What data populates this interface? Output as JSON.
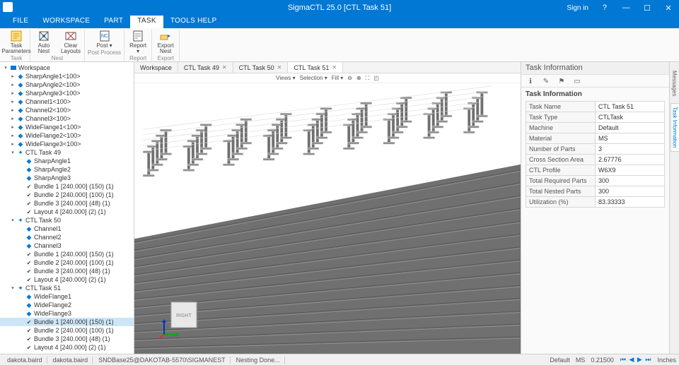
{
  "title": "SigmaCTL 25.0 [CTL Task 51]",
  "signin": "Sign in",
  "menuTabs": {
    "file": "FILE",
    "workspace": "WORKSPACE",
    "part": "PART",
    "task": "TASK",
    "tools": "TOOLS HELP",
    "active": "task"
  },
  "ribbon": {
    "taskGroup": {
      "label": "Task",
      "taskParams": "Task\nParameters"
    },
    "nestGroup": {
      "label": "Nest",
      "autoNest": "Auto\nNest",
      "clearLayouts": "Clear\nLayouts"
    },
    "postGroup": {
      "label": "Post Process",
      "post": "Post\n▾"
    },
    "reportGroup": {
      "label": "Report",
      "report": "Report\n▾"
    },
    "exportGroup": {
      "label": "Export",
      "exportNest": "Export\nNest"
    }
  },
  "tree": {
    "root": "Workspace",
    "topParts": [
      "SharpAngle1<100>",
      "SharpAngle2<100>",
      "SharpAngle3<100>",
      "Channel1<100>",
      "Channel2<100>",
      "Channel3<100>",
      "WideFlange1<100>",
      "WideFlange2<100>",
      "WideFlange3<100>"
    ],
    "tasks": [
      {
        "name": "CTL Task 49",
        "parts": [
          "SharpAngle1",
          "SharpAngle2",
          "SharpAngle3"
        ],
        "bundles": [
          "Bundle 1 [240.000] (150) (1)",
          "Bundle 2 [240.000] (100) (1)",
          "Bundle 3 [240.000] (48) (1)",
          "Layout 4 [240.000] (2) (1)"
        ]
      },
      {
        "name": "CTL Task 50",
        "parts": [
          "Channel1",
          "Channel2",
          "Channel3"
        ],
        "bundles": [
          "Bundle 1 [240.000] (150) (1)",
          "Bundle 2 [240.000] (100) (1)",
          "Bundle 3 [240.000] (48) (1)",
          "Layout 4 [240.000] (2) (1)"
        ]
      },
      {
        "name": "CTL Task 51",
        "parts": [
          "WideFlange1",
          "WideFlange2",
          "WideFlange3"
        ],
        "bundles": [
          "Bundle 1 [240.000] (150) (1)",
          "Bundle 2 [240.000] (100) (1)",
          "Bundle 3 [240.000] (48) (1)",
          "Layout 4 [240.000] (2) (1)"
        ],
        "selected": "Bundle 1 [240.000] (150) (1)"
      }
    ]
  },
  "docTabs": [
    {
      "label": "Workspace",
      "closable": false
    },
    {
      "label": "CTL Task 49",
      "closable": true
    },
    {
      "label": "CTL Task 50",
      "closable": true
    },
    {
      "label": "CTL Task 51",
      "closable": true,
      "active": true
    }
  ],
  "viewbar": {
    "views": "Views ▾",
    "selection": "Selection ▾",
    "fill": "Fill ▾"
  },
  "viewport": {
    "cubeLabel": "RIGHT",
    "beam": {
      "fill": "#707070",
      "dark": "#585858",
      "light": "#909090",
      "edge": "#d8d8d8"
    }
  },
  "taskInfo": {
    "panelTitle": "Task Information",
    "sectionTitle": "Task Information",
    "rows": [
      [
        "Task Name",
        "CTL Task 51"
      ],
      [
        "Task Type",
        "CTLTask"
      ],
      [
        "Machine",
        "Default"
      ],
      [
        "Material",
        "MS"
      ],
      [
        "Number of Parts",
        "3"
      ],
      [
        "Cross Section Area",
        "2.67776"
      ],
      [
        "CTL Profile",
        "W6X9"
      ],
      [
        "Total Required Parts",
        "300"
      ],
      [
        "Total Nested Parts",
        "300"
      ],
      [
        "Utilization (%)",
        "83.33333"
      ]
    ]
  },
  "rightTabs": {
    "messages": "Messages",
    "taskInfo": "Task Information"
  },
  "status": {
    "left": [
      "dakota.baird",
      "dakota.baird",
      "SNDBase25@DAKOTAB-5570\\SIGMANEST",
      "Nesting Done..."
    ],
    "right": {
      "default": "Default",
      "ms": "MS",
      "thick": "0.21500",
      "units": "Inches"
    }
  },
  "colors": {
    "primary": "#0078d4",
    "panel": "#fafafa",
    "border": "#d0d0d0"
  }
}
